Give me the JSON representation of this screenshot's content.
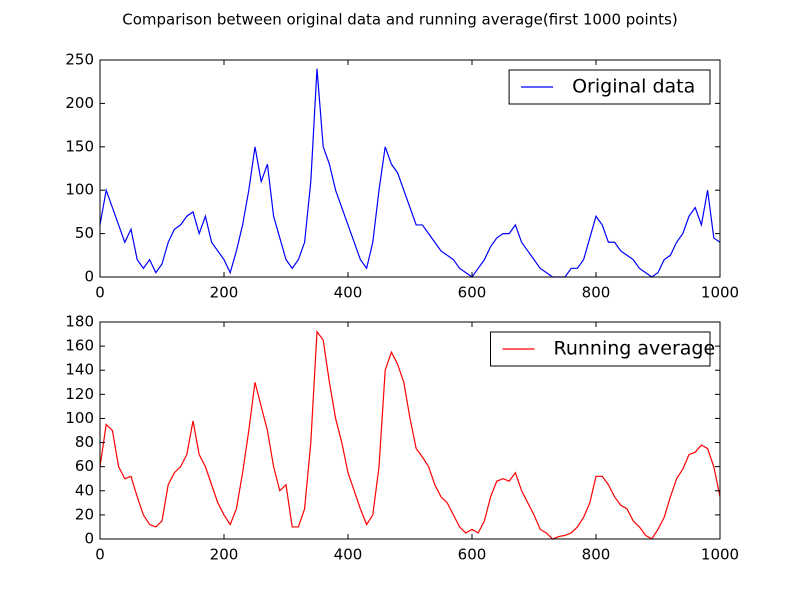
{
  "chart_data": [
    {
      "type": "line",
      "title": "Comparison between original data and running average(first 1000 points)",
      "x": [
        0,
        10,
        20,
        30,
        40,
        50,
        60,
        70,
        80,
        90,
        100,
        110,
        120,
        130,
        140,
        150,
        160,
        170,
        180,
        190,
        200,
        210,
        220,
        230,
        240,
        250,
        260,
        270,
        280,
        290,
        300,
        310,
        320,
        330,
        340,
        350,
        360,
        370,
        380,
        390,
        400,
        410,
        420,
        430,
        440,
        450,
        460,
        470,
        480,
        490,
        500,
        510,
        520,
        530,
        540,
        550,
        560,
        570,
        580,
        590,
        600,
        610,
        620,
        630,
        640,
        650,
        660,
        670,
        680,
        690,
        700,
        710,
        720,
        730,
        740,
        750,
        760,
        770,
        780,
        790,
        800,
        810,
        820,
        830,
        840,
        850,
        860,
        870,
        880,
        890,
        900,
        910,
        920,
        930,
        940,
        950,
        960,
        970,
        980,
        990,
        1000
      ],
      "series": [
        {
          "name": "Original data",
          "color": "#0000ff",
          "values": [
            60,
            100,
            80,
            60,
            40,
            55,
            20,
            10,
            20,
            5,
            15,
            40,
            55,
            60,
            70,
            75,
            50,
            70,
            40,
            30,
            20,
            5,
            30,
            60,
            100,
            150,
            110,
            130,
            70,
            45,
            20,
            10,
            20,
            40,
            110,
            240,
            150,
            130,
            100,
            80,
            60,
            40,
            20,
            10,
            40,
            100,
            150,
            130,
            120,
            100,
            80,
            60,
            60,
            50,
            40,
            30,
            25,
            20,
            10,
            5,
            0,
            10,
            20,
            35,
            45,
            50,
            50,
            60,
            40,
            30,
            20,
            10,
            5,
            0,
            0,
            0,
            10,
            10,
            20,
            45,
            70,
            60,
            40,
            40,
            30,
            25,
            20,
            10,
            5,
            0,
            5,
            20,
            25,
            40,
            50,
            70,
            80,
            60,
            100,
            45,
            40
          ]
        }
      ],
      "xlim": [
        0,
        1000
      ],
      "xticks": [
        0,
        200,
        400,
        600,
        800,
        1000
      ],
      "ylim": [
        0,
        250
      ],
      "yticks": [
        0,
        50,
        100,
        150,
        200,
        250
      ],
      "legend": "upper right"
    },
    {
      "type": "line",
      "x": [
        0,
        10,
        20,
        30,
        40,
        50,
        60,
        70,
        80,
        90,
        100,
        110,
        120,
        130,
        140,
        150,
        160,
        170,
        180,
        190,
        200,
        210,
        220,
        230,
        240,
        250,
        260,
        270,
        280,
        290,
        300,
        310,
        320,
        330,
        340,
        350,
        360,
        370,
        380,
        390,
        400,
        410,
        420,
        430,
        440,
        450,
        460,
        470,
        480,
        490,
        500,
        510,
        520,
        530,
        540,
        550,
        560,
        570,
        580,
        590,
        600,
        610,
        620,
        630,
        640,
        650,
        660,
        670,
        680,
        690,
        700,
        710,
        720,
        730,
        740,
        750,
        760,
        770,
        780,
        790,
        800,
        810,
        820,
        830,
        840,
        850,
        860,
        870,
        880,
        890,
        900,
        910,
        920,
        930,
        940,
        950,
        960,
        970,
        980,
        990,
        1000
      ],
      "series": [
        {
          "name": "Running average",
          "color": "#ff0000",
          "values": [
            60,
            95,
            90,
            60,
            50,
            52,
            35,
            20,
            12,
            10,
            15,
            45,
            55,
            60,
            70,
            98,
            70,
            60,
            45,
            30,
            20,
            12,
            25,
            55,
            90,
            130,
            110,
            90,
            60,
            40,
            45,
            10,
            10,
            25,
            80,
            172,
            165,
            130,
            100,
            80,
            55,
            40,
            25,
            12,
            20,
            60,
            140,
            155,
            145,
            130,
            100,
            75,
            68,
            60,
            45,
            35,
            30,
            20,
            10,
            5,
            8,
            5,
            15,
            35,
            48,
            50,
            48,
            55,
            40,
            30,
            20,
            8,
            5,
            0,
            2,
            3,
            5,
            10,
            18,
            30,
            52,
            52,
            45,
            35,
            28,
            25,
            15,
            10,
            3,
            0,
            8,
            18,
            35,
            50,
            58,
            70,
            72,
            78,
            75,
            60,
            35
          ]
        }
      ],
      "xlim": [
        0,
        1000
      ],
      "xticks": [
        0,
        200,
        400,
        600,
        800,
        1000
      ],
      "ylim": [
        0,
        180
      ],
      "yticks": [
        0,
        20,
        40,
        60,
        80,
        100,
        120,
        140,
        160,
        180
      ],
      "legend": "upper right"
    }
  ]
}
